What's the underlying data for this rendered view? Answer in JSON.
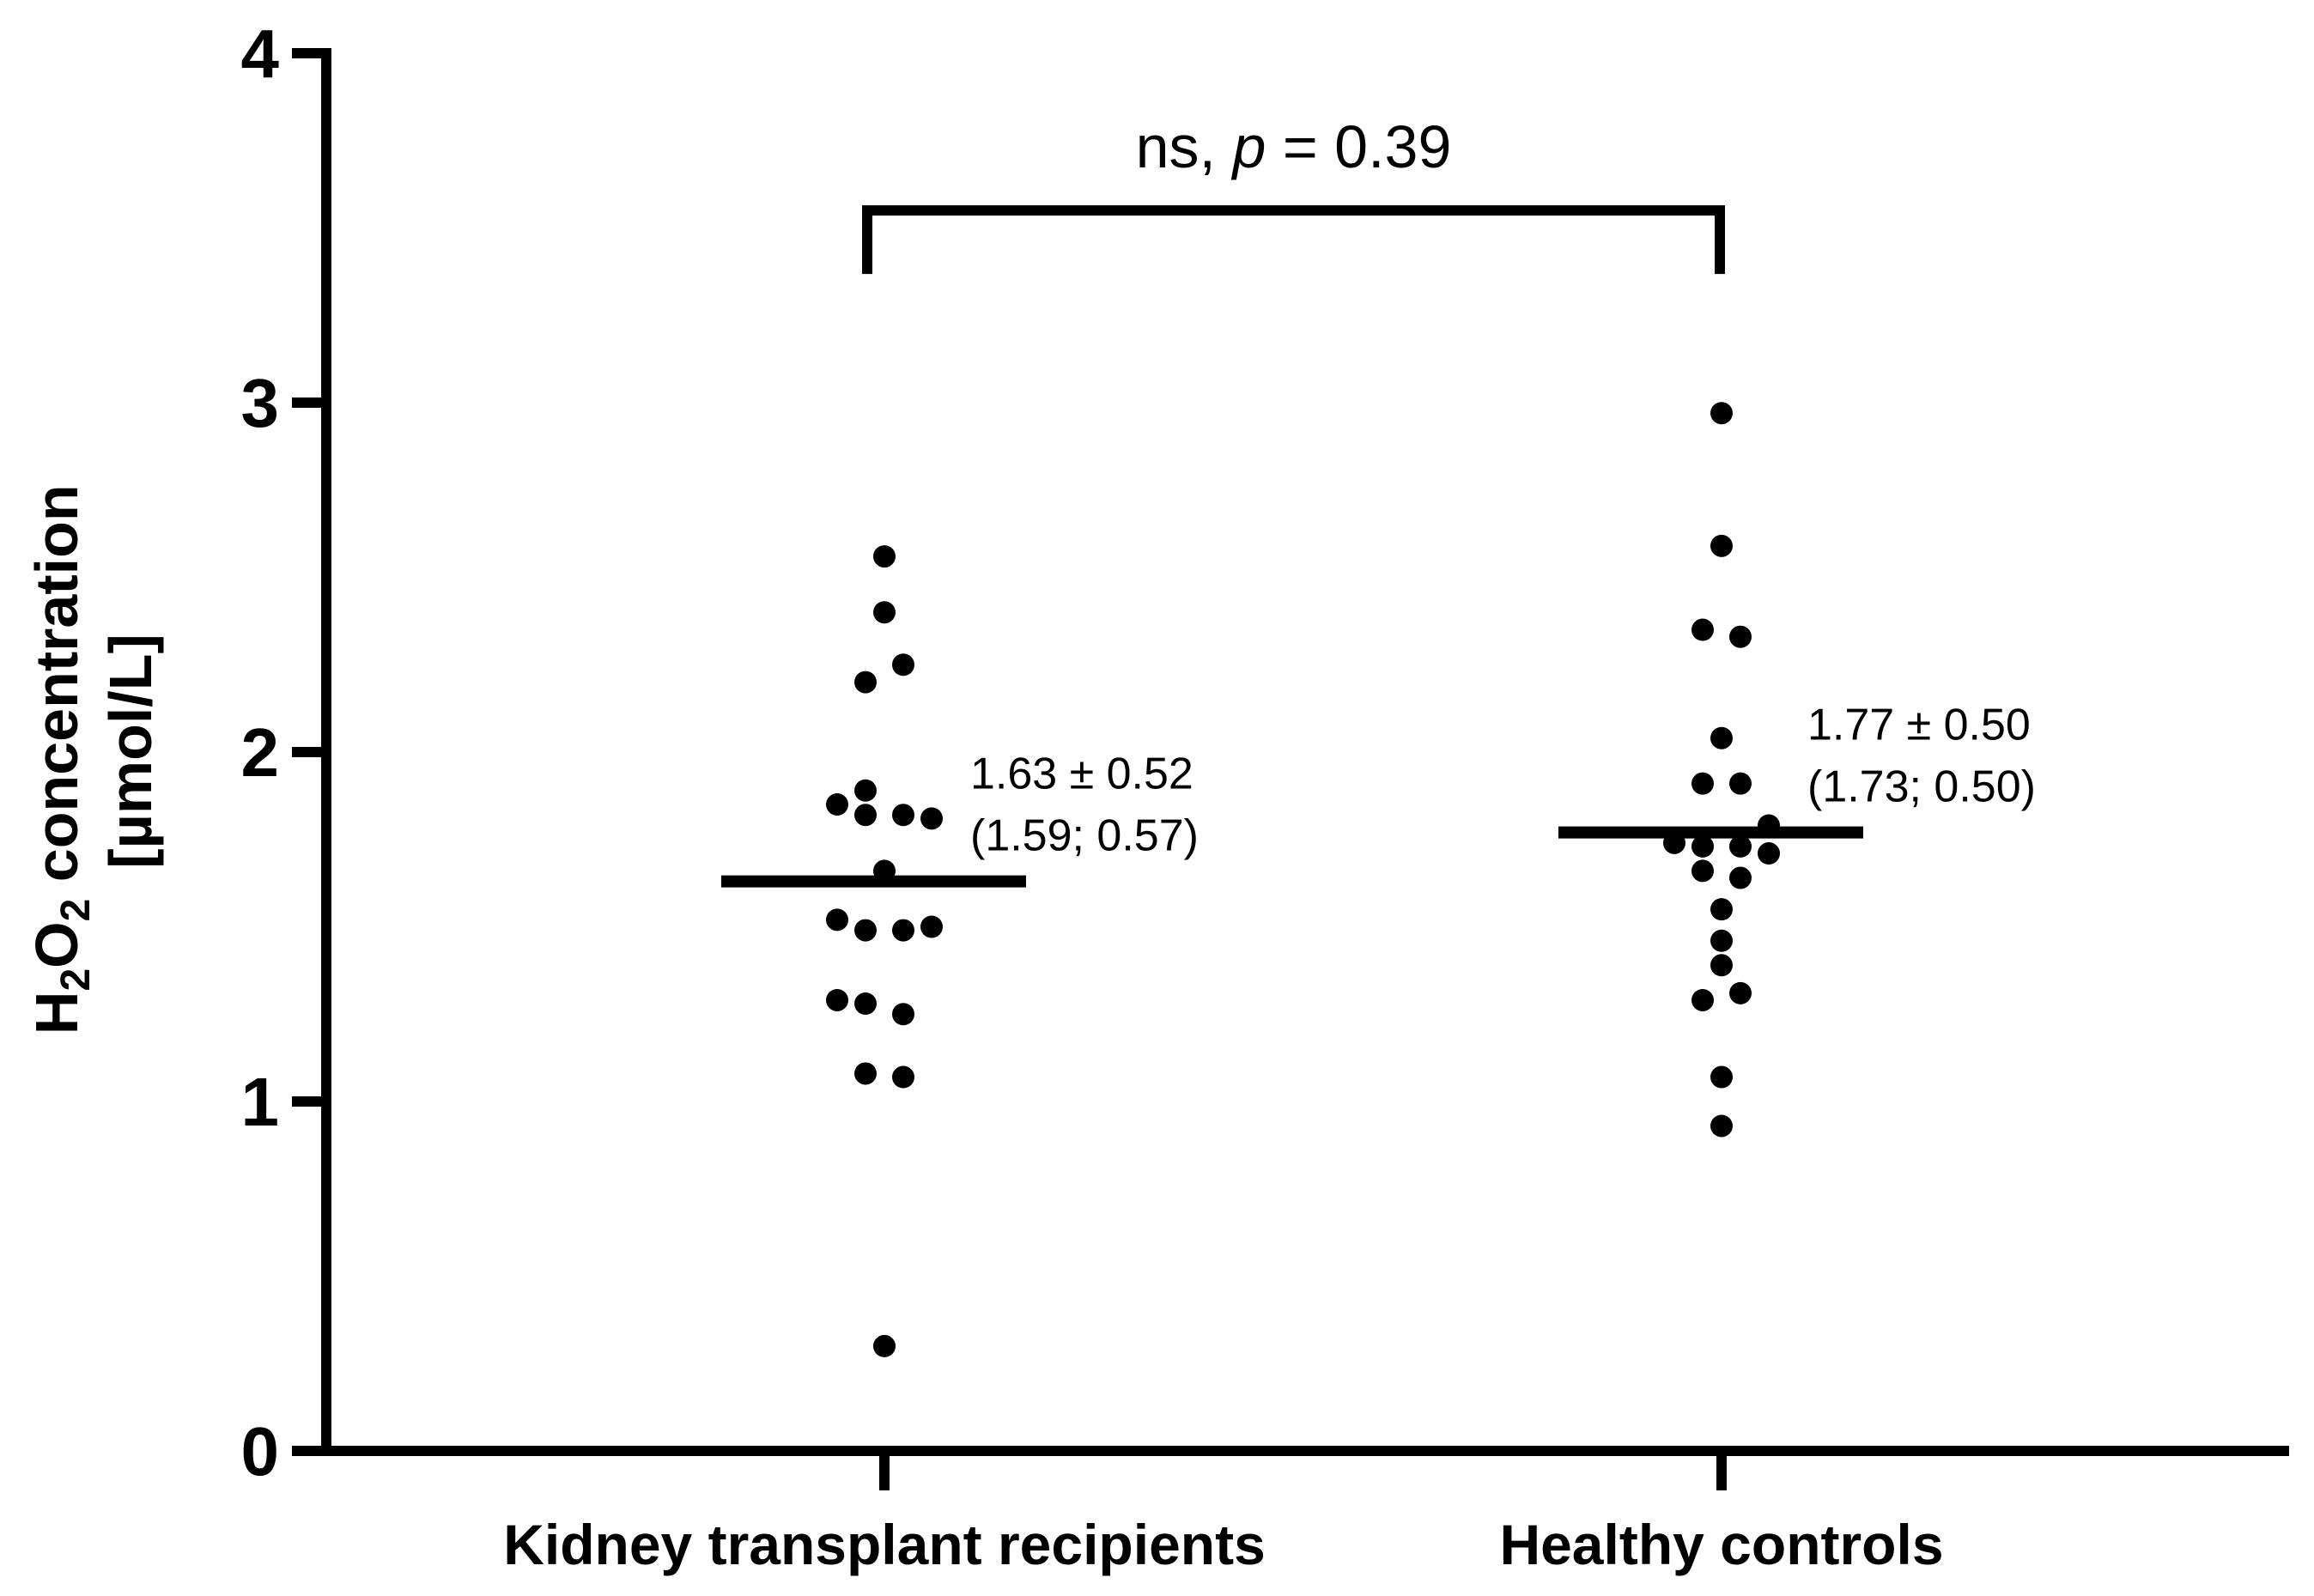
{
  "chart_data": {
    "type": "scatter",
    "title": "",
    "xlabel": "",
    "ylabel": {
      "main": "H2O2 concentration",
      "h": "H",
      "sub1": "2",
      "o": "O",
      "sub2": "2",
      "rest": " concentration",
      "unit": "[µmol/L]"
    },
    "ylim": [
      0,
      4
    ],
    "yticks": [
      "0",
      "1",
      "2",
      "3",
      "4"
    ],
    "categories": [
      "Kidney transplant recipients",
      "Healthy controls"
    ],
    "series": [
      {
        "name": "Kidney transplant recipients",
        "mean": 1.63,
        "annotation_line1": "1.63 ± 0.52",
        "annotation_line2": "(1.59; 0.57)",
        "points": [
          {
            "y": 2.56,
            "dx": 0
          },
          {
            "y": 2.4,
            "dx": 0
          },
          {
            "y": 2.25,
            "dx": 1
          },
          {
            "y": 2.2,
            "dx": -1
          },
          {
            "y": 1.89,
            "dx": -1
          },
          {
            "y": 1.85,
            "dx": -2.5
          },
          {
            "y": 1.82,
            "dx": -1
          },
          {
            "y": 1.82,
            "dx": 1
          },
          {
            "y": 1.81,
            "dx": 2.5
          },
          {
            "y": 1.66,
            "dx": 0
          },
          {
            "y": 1.52,
            "dx": -2.5
          },
          {
            "y": 1.49,
            "dx": -1
          },
          {
            "y": 1.49,
            "dx": 1
          },
          {
            "y": 1.5,
            "dx": 2.5
          },
          {
            "y": 1.29,
            "dx": -2.5
          },
          {
            "y": 1.28,
            "dx": -1
          },
          {
            "y": 1.25,
            "dx": 1
          },
          {
            "y": 1.08,
            "dx": -1
          },
          {
            "y": 1.07,
            "dx": 1
          },
          {
            "y": 0.3,
            "dx": 0
          }
        ]
      },
      {
        "name": "Healthy controls",
        "mean": 1.77,
        "annotation_line1": "1.77 ± 0.50",
        "annotation_line2": "(1.73; 0.50)",
        "points": [
          {
            "y": 2.97,
            "dx": 0
          },
          {
            "y": 2.59,
            "dx": 0
          },
          {
            "y": 2.35,
            "dx": -1
          },
          {
            "y": 2.33,
            "dx": 1
          },
          {
            "y": 2.04,
            "dx": 0
          },
          {
            "y": 1.91,
            "dx": -1
          },
          {
            "y": 1.91,
            "dx": 1
          },
          {
            "y": 1.79,
            "dx": 2.5
          },
          {
            "y": 1.74,
            "dx": -2.5
          },
          {
            "y": 1.73,
            "dx": -1
          },
          {
            "y": 1.73,
            "dx": 1
          },
          {
            "y": 1.71,
            "dx": 2.5
          },
          {
            "y": 1.66,
            "dx": -1
          },
          {
            "y": 1.64,
            "dx": 1
          },
          {
            "y": 1.55,
            "dx": 0
          },
          {
            "y": 1.46,
            "dx": 0
          },
          {
            "y": 1.39,
            "dx": 0
          },
          {
            "y": 1.31,
            "dx": 1
          },
          {
            "y": 1.29,
            "dx": -1
          },
          {
            "y": 1.07,
            "dx": 0
          },
          {
            "y": 0.93,
            "dx": 0
          }
        ]
      }
    ],
    "significance": {
      "text_prefix": "ns, ",
      "text_p": "p",
      "text_suffix": " = 0.39",
      "bracket_y": 3.55,
      "from": 0,
      "to": 1
    }
  }
}
